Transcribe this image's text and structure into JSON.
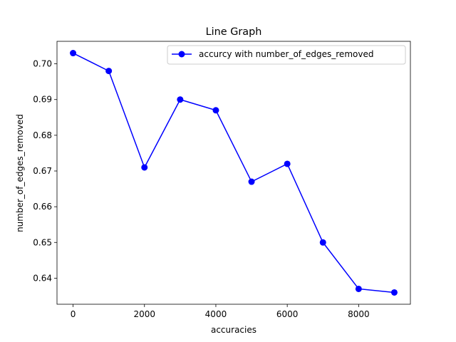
{
  "chart_data": {
    "type": "line",
    "title": "Line Graph",
    "xlabel": "accuracies",
    "ylabel": "number_of_edges_removed",
    "xlim": [
      -450,
      9450
    ],
    "ylim": [
      0.6327,
      0.7063
    ],
    "xticks": [
      0,
      2000,
      4000,
      6000,
      8000
    ],
    "xtick_labels": [
      "0",
      "2000",
      "4000",
      "6000",
      "8000"
    ],
    "yticks": [
      0.64,
      0.65,
      0.66,
      0.67,
      0.68,
      0.69,
      0.7
    ],
    "ytick_labels": [
      "0.64",
      "0.65",
      "0.66",
      "0.67",
      "0.68",
      "0.69",
      "0.70"
    ],
    "grid": false,
    "legend_position": "top-right",
    "series": [
      {
        "name": "accurcy with number_of_edges_removed",
        "color": "#0000ff",
        "marker": "circle",
        "x": [
          0,
          1000,
          2000,
          3000,
          4000,
          5000,
          6000,
          7000,
          8000,
          9000
        ],
        "y": [
          0.703,
          0.698,
          0.671,
          0.69,
          0.687,
          0.667,
          0.672,
          0.65,
          0.637,
          0.636
        ]
      }
    ]
  }
}
